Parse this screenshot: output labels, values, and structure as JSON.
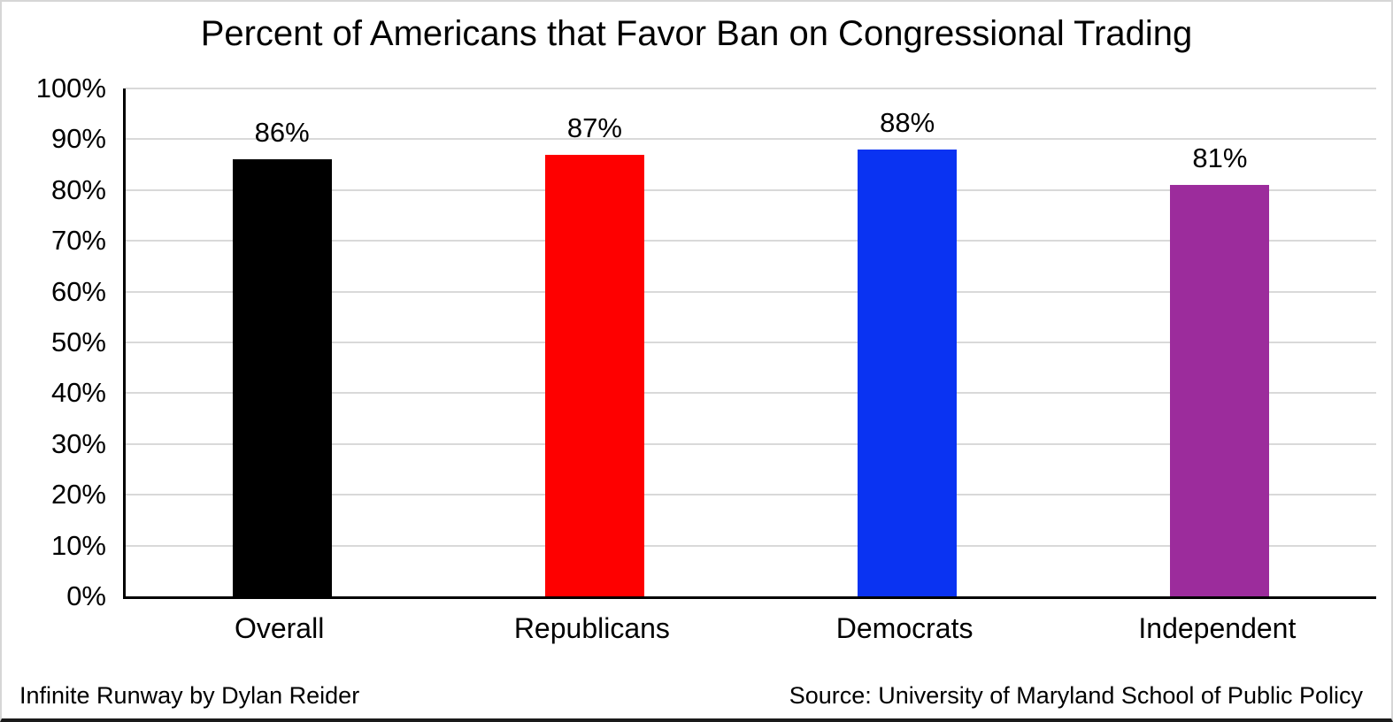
{
  "title": "Percent of Americans that Favor Ban on Congressional Trading",
  "footer": {
    "credit": "Infinite Runway by Dylan Reider",
    "source": "Source: University of Maryland School of Public Policy"
  },
  "chart_data": {
    "type": "bar",
    "title": "Percent of Americans that Favor Ban on Congressional Trading",
    "categories": [
      "Overall",
      "Republicans",
      "Democrats",
      "Independent"
    ],
    "values": [
      86,
      87,
      88,
      81
    ],
    "value_labels": [
      "86%",
      "87%",
      "88%",
      "81%"
    ],
    "bar_colors": [
      "#000000",
      "#FE0000",
      "#0A33F2",
      "#9C2C9C"
    ],
    "xlabel": "",
    "ylabel": "",
    "ylim": [
      0,
      100
    ],
    "ytick_interval": 10,
    "ytick_labels": [
      "0%",
      "10%",
      "20%",
      "30%",
      "40%",
      "50%",
      "60%",
      "70%",
      "80%",
      "90%",
      "100%"
    ],
    "grid": true,
    "gridline_color": "#D9D9D9",
    "axis_color": "#000000",
    "background": "#FFFFFF",
    "legend": "none"
  }
}
